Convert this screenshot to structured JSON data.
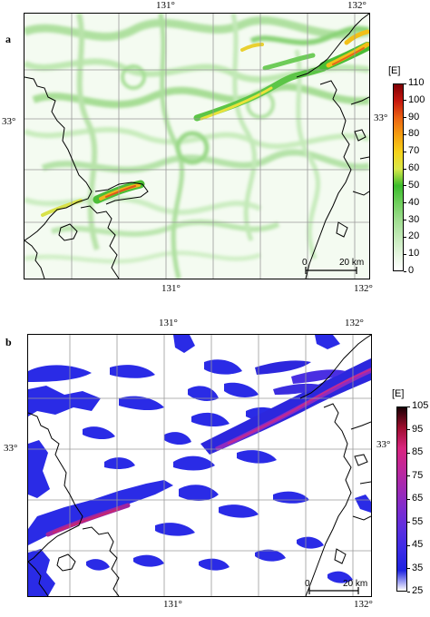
{
  "panels": [
    {
      "id": "a",
      "letter": "a",
      "lon_labels": [
        "131°",
        "132°"
      ],
      "lat_label": "33°",
      "scalebar": {
        "start": "0",
        "end": "20 km"
      },
      "legend": {
        "unit": "[E]",
        "ticks": [
          "110",
          "100",
          "90",
          "80",
          "70",
          "60",
          "50",
          "40",
          "30",
          "20",
          "10",
          "0"
        ],
        "colors": [
          "#ffffff",
          "#e3f5dd",
          "#c2eab7",
          "#9edd8f",
          "#6fcf5c",
          "#3bbc2c",
          "#d9e84a",
          "#f6d21a",
          "#f59f10",
          "#eb6412",
          "#c7180f",
          "#7e0004"
        ]
      }
    },
    {
      "id": "b",
      "letter": "b",
      "lon_labels": [
        "131°",
        "132°"
      ],
      "lat_label": "33°",
      "scalebar": {
        "start": "0",
        "end": "20 km"
      },
      "legend": {
        "unit": "[E]",
        "ticks": [
          "105",
          "95",
          "85",
          "75",
          "65",
          "55",
          "45",
          "35",
          "25"
        ],
        "colors": [
          "#ffffff",
          "#1d22e0",
          "#3a2be6",
          "#5a2ee0",
          "#7d2ccf",
          "#a02ab4",
          "#c0279a",
          "#d9257e",
          "#9e0d2e",
          "#1a0003"
        ]
      }
    }
  ]
}
